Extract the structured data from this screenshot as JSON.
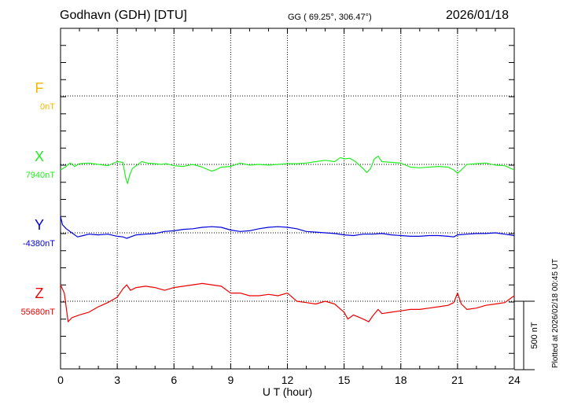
{
  "header": {
    "station": "Godhavn (GDH)  [DTU]",
    "coords": "GG ( 69.25°, 306.47°)",
    "date": "2026/01/18"
  },
  "footer": {
    "plotted": "Plotted at 2026/02/18 00:45 UT"
  },
  "chart_data": {
    "type": "line",
    "title": "",
    "xlabel": "U T (hour)",
    "xlim": [
      0,
      24
    ],
    "xticks": [
      0,
      3,
      6,
      9,
      12,
      15,
      18,
      21,
      24
    ],
    "grid": true,
    "scale_bar": "500 nT",
    "scale_bar_nT": 500,
    "colors": {
      "F": "#f5b800",
      "X": "#22ee22",
      "Y": "#0000dd",
      "Z": "#ee0000"
    },
    "series": [
      {
        "name": "F",
        "baseline": "0nT",
        "values": []
      },
      {
        "name": "X",
        "baseline": "7940nT",
        "x": [
          0,
          0.25,
          0.5,
          0.75,
          1,
          1.5,
          2,
          2.5,
          3,
          3.3,
          3.45,
          3.55,
          3.65,
          3.8,
          4,
          4.3,
          4.6,
          5,
          5.3,
          5.6,
          6,
          6.5,
          7,
          7.5,
          8,
          8.2,
          8.5,
          9,
          9.5,
          10,
          10.5,
          11,
          11.5,
          12,
          12.5,
          13,
          13.5,
          14,
          14.5,
          14.8,
          15,
          15.3,
          15.6,
          16,
          16.2,
          16.4,
          16.6,
          16.8,
          17,
          17.5,
          18,
          18.5,
          19,
          19.5,
          20,
          20.5,
          20.8,
          21,
          21.2,
          21.5,
          22,
          22.5,
          23,
          23.5,
          24
        ],
        "values": [
          -40,
          -20,
          10,
          -15,
          5,
          10,
          0,
          -10,
          20,
          15,
          -100,
          -140,
          -80,
          -30,
          -10,
          20,
          10,
          5,
          0,
          5,
          -10,
          -15,
          0,
          -20,
          -50,
          -40,
          -20,
          -15,
          10,
          -5,
          0,
          -5,
          0,
          5,
          5,
          10,
          20,
          30,
          20,
          50,
          40,
          45,
          20,
          -30,
          -60,
          -30,
          40,
          60,
          20,
          15,
          10,
          -20,
          -25,
          -20,
          -15,
          -20,
          -40,
          -65,
          -40,
          0,
          5,
          10,
          -5,
          -10,
          -40
        ]
      },
      {
        "name": "Y",
        "baseline": "-4380nT",
        "x": [
          0,
          0.1,
          0.3,
          0.6,
          0.9,
          1.2,
          1.5,
          2,
          2.5,
          3,
          3.3,
          3.5,
          3.7,
          4,
          4.5,
          5,
          5.5,
          6,
          6.5,
          7,
          7.5,
          8,
          8.5,
          9,
          9.5,
          10,
          10.5,
          11,
          11.5,
          12,
          12.5,
          13,
          13.5,
          14,
          14.5,
          15,
          15.5,
          16,
          16.5,
          17,
          17.5,
          18,
          18.5,
          19,
          19.5,
          20,
          20.5,
          20.8,
          21,
          21.5,
          22,
          22.5,
          23,
          23.5,
          24
        ],
        "values": [
          120,
          60,
          30,
          0,
          -30,
          -20,
          -10,
          -15,
          -10,
          -25,
          -30,
          -40,
          -30,
          -15,
          -10,
          -5,
          10,
          15,
          25,
          30,
          40,
          45,
          40,
          20,
          10,
          15,
          30,
          40,
          45,
          40,
          30,
          10,
          5,
          0,
          -5,
          -15,
          -20,
          -10,
          -10,
          -5,
          -15,
          -20,
          -25,
          -25,
          -20,
          -20,
          -25,
          -30,
          -15,
          -10,
          -5,
          -5,
          0,
          -10,
          -20
        ]
      },
      {
        "name": "Z",
        "baseline": "55680nT",
        "x": [
          0,
          0.2,
          0.4,
          0.6,
          1,
          1.5,
          2,
          2.5,
          3,
          3.3,
          3.5,
          3.7,
          4,
          4.5,
          5,
          5.5,
          6,
          6.5,
          7,
          7.5,
          8,
          8.5,
          9,
          9.5,
          10,
          10.5,
          11,
          11.5,
          12,
          12.5,
          13,
          13.5,
          14,
          14.5,
          15,
          15.2,
          15.5,
          16,
          16.3,
          16.5,
          16.8,
          17,
          17.5,
          18,
          18.5,
          19,
          19.5,
          20,
          20.5,
          20.8,
          21,
          21.2,
          21.5,
          22,
          22.5,
          23,
          23.5,
          24
        ],
        "values": [
          120,
          60,
          -150,
          -120,
          -100,
          -80,
          -40,
          -10,
          30,
          90,
          120,
          80,
          100,
          110,
          100,
          80,
          100,
          110,
          120,
          130,
          120,
          110,
          60,
          60,
          40,
          40,
          50,
          40,
          60,
          0,
          -10,
          -20,
          0,
          -20,
          -80,
          -130,
          -100,
          -130,
          -150,
          -110,
          -60,
          -90,
          -80,
          -70,
          -60,
          -60,
          -50,
          -40,
          -30,
          -10,
          60,
          -20,
          -60,
          -50,
          -30,
          -20,
          -10,
          40
        ]
      }
    ]
  }
}
